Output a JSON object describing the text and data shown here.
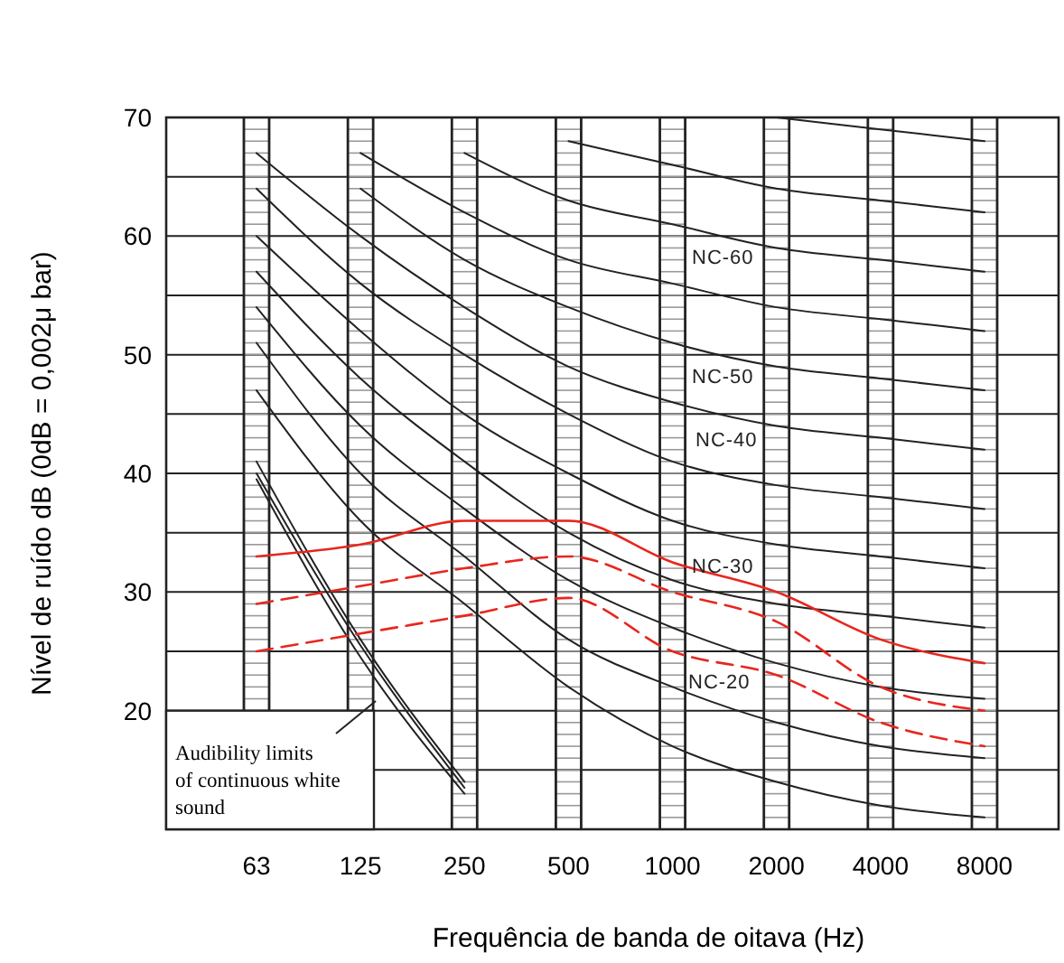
{
  "chart_data": {
    "type": "line",
    "xlabel": "Frequência de banda de oitava (Hz)",
    "ylabel": "Nível de ruído dB (0dB = 0,002μ bar)",
    "categories": [
      "63",
      "125",
      "250",
      "500",
      "1000",
      "2000",
      "4000",
      "8000"
    ],
    "ylim": [
      10,
      70
    ],
    "yticks": [
      {
        "value": 10,
        "label": null
      },
      {
        "value": 15,
        "label": null
      },
      20,
      {
        "value": 25,
        "label": null
      },
      30,
      {
        "value": 35,
        "label": null
      },
      40,
      {
        "value": 45,
        "label": null
      },
      50,
      {
        "value": 55,
        "label": null
      },
      60,
      {
        "value": 65,
        "label": null
      },
      70
    ],
    "grid": true,
    "series": [
      {
        "color": "#222222",
        "line_style": "solid",
        "values": [
          47,
          36,
          29,
          22,
          17,
          14,
          12,
          11
        ]
      },
      {
        "color": "#222222",
        "line_style": "solid",
        "values": [
          51,
          40,
          33,
          26,
          22,
          19,
          17,
          16
        ]
      },
      {
        "color": "#222222",
        "line_style": "solid",
        "values": [
          54,
          44,
          37,
          31,
          27,
          24,
          22,
          21
        ]
      },
      {
        "color": "#222222",
        "line_style": "solid",
        "values": [
          57,
          48,
          41,
          35,
          31,
          29,
          28,
          27
        ]
      },
      {
        "color": "#222222",
        "line_style": "solid",
        "values": [
          60,
          52,
          45,
          40,
          36,
          34,
          33,
          32
        ]
      },
      {
        "color": "#222222",
        "line_style": "solid",
        "values": [
          64,
          56,
          50,
          45,
          41,
          39,
          38,
          37
        ]
      },
      {
        "color": "#222222",
        "line_style": "solid",
        "values": [
          67,
          60,
          54,
          49,
          46,
          44,
          43,
          42
        ]
      },
      {
        "color": "#222222",
        "line_style": "solid",
        "values": [
          null,
          64,
          58,
          54,
          51,
          49,
          48,
          47
        ]
      },
      {
        "color": "#222222",
        "line_style": "solid",
        "values": [
          null,
          67,
          62,
          58,
          56,
          54,
          53,
          52
        ]
      },
      {
        "color": "#222222",
        "line_style": "solid",
        "values": [
          null,
          null,
          67,
          63,
          61,
          59,
          58,
          57
        ]
      },
      {
        "color": "#222222",
        "line_style": "solid",
        "values": [
          null,
          null,
          null,
          68,
          66,
          64,
          63,
          62
        ]
      },
      {
        "color": "#222222",
        "line_style": "solid",
        "values": [
          null,
          null,
          null,
          null,
          null,
          70,
          69,
          68
        ]
      },
      {
        "color": "#222222",
        "line_style": "solid",
        "values": [
          41,
          26,
          14,
          null,
          null,
          null,
          null,
          null
        ]
      },
      {
        "color": "#222222",
        "line_style": "solid",
        "values": [
          40,
          25.5,
          13.5,
          null,
          null,
          null,
          null,
          null
        ]
      },
      {
        "color": "#222222",
        "line_style": "solid",
        "values": [
          39.5,
          24.5,
          13,
          null,
          null,
          null,
          null,
          null
        ]
      },
      {
        "color": "#e8261e",
        "line_style": "solid",
        "values": [
          33,
          34,
          36,
          36,
          32.5,
          30,
          26,
          24
        ]
      },
      {
        "color": "#e8261e",
        "line_style": "dashed",
        "values": [
          29,
          30.5,
          32,
          33,
          30,
          27.5,
          22,
          20
        ]
      },
      {
        "color": "#e8261e",
        "line_style": "dashed",
        "values": [
          25,
          26.5,
          28,
          29.5,
          25,
          23,
          19,
          17
        ]
      }
    ],
    "annotations": [
      "NC-60",
      "NC-50",
      "NC-40",
      "NC-30",
      "NC-20",
      "Audibility limits of continuous white sound"
    ]
  }
}
